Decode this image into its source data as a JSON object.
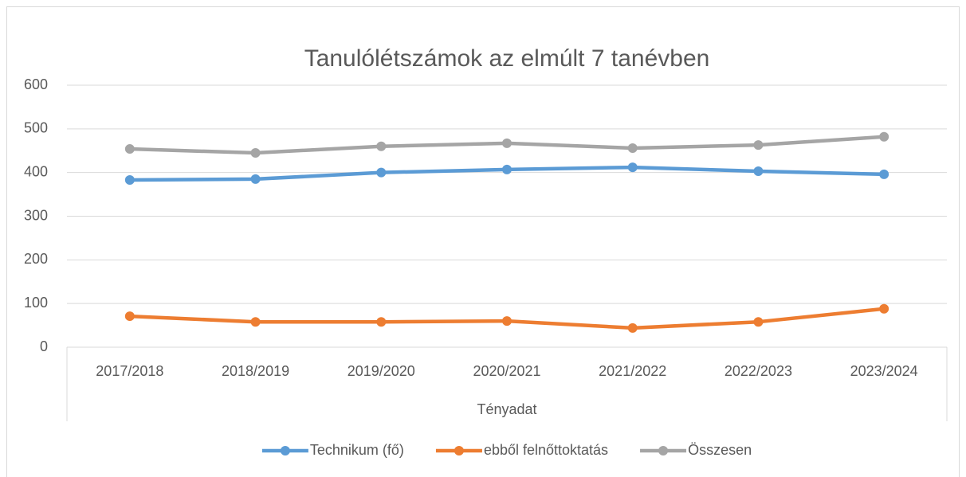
{
  "chart_data": {
    "type": "line",
    "title": "Tanulólétszámok az elmúlt 7 tanévben",
    "xlabel": "Tényadat",
    "categories": [
      "2017/2018",
      "2018/2019",
      "2019/2020",
      "2020/2021",
      "2021/2022",
      "2022/2023",
      "2023/2024"
    ],
    "series": [
      {
        "name": "Technikum (fő)",
        "color": "#5b9bd5",
        "values": [
          383,
          385,
          400,
          407,
          412,
          403,
          396
        ]
      },
      {
        "name": "ebből felnőttoktatás",
        "color": "#ed7d31",
        "values": [
          71,
          58,
          58,
          60,
          44,
          58,
          88
        ]
      },
      {
        "name": "Összesen",
        "color": "#a5a5a5",
        "values": [
          454,
          445,
          460,
          467,
          456,
          463,
          482
        ]
      }
    ],
    "ylim": [
      0,
      600
    ],
    "yticks": [
      0,
      100,
      200,
      300,
      400,
      500,
      600
    ],
    "grid": true,
    "legend": "bottom"
  }
}
